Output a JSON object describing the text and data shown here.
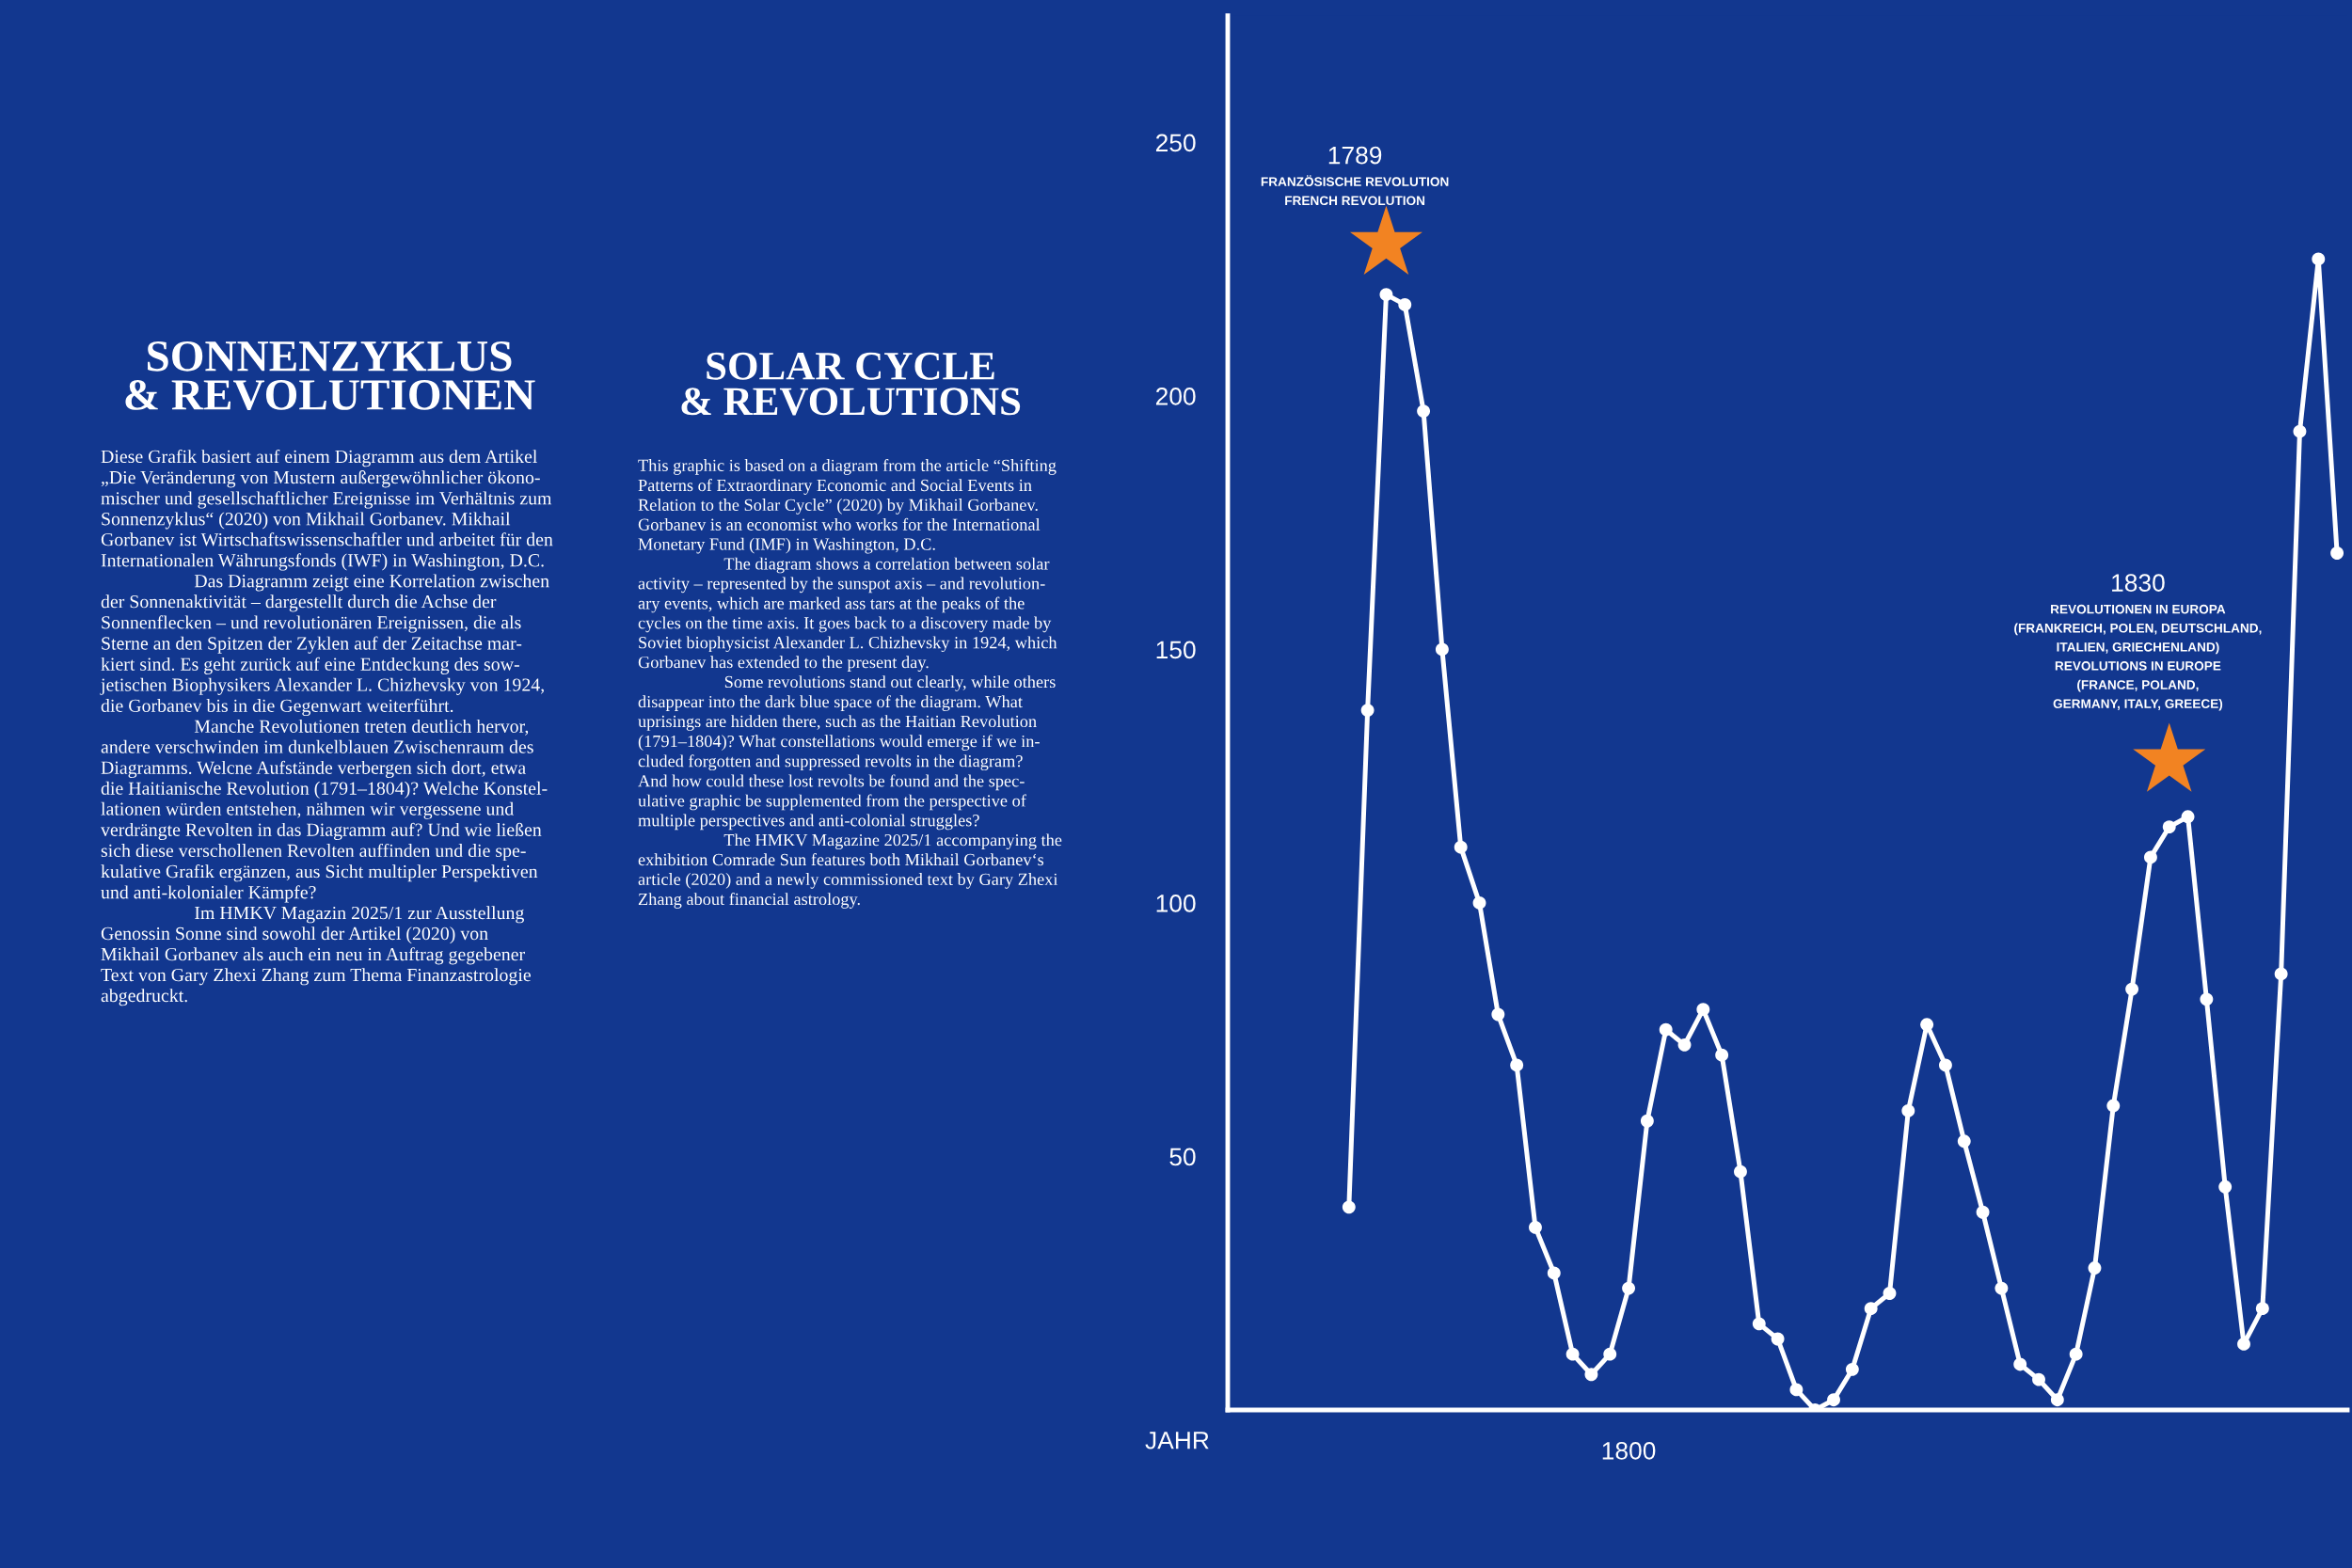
{
  "chart_data": {
    "type": "line",
    "title": "SONNENZYKLUS\n& REVOLUTIONEN",
    "subtitle": "SOLAR CYCLE\n& REVOLUTIONS",
    "xlabel": "JAHR",
    "categories": [
      null,
      null,
      null,
      null,
      null,
      null,
      null,
      null,
      null,
      null,
      null,
      null,
      null,
      null,
      null,
      "1800",
      null,
      null,
      null,
      null,
      null,
      null,
      null,
      null,
      null,
      null,
      null,
      null,
      null,
      null,
      null,
      null,
      null,
      null,
      null,
      null,
      null,
      null,
      null,
      null,
      null,
      null,
      null,
      null,
      null,
      null,
      null,
      null,
      null,
      null,
      null,
      null,
      null,
      null
    ],
    "series": [
      {
        "color": "#ffffff",
        "marker": "circle",
        "values": [
          40,
          138,
          220,
          218,
          197,
          150,
          111,
          100,
          78,
          68,
          36,
          27,
          11,
          7,
          11,
          24,
          57,
          75,
          72,
          79,
          70,
          47,
          17,
          14,
          4,
          0,
          2,
          8,
          20,
          23,
          59,
          76,
          68,
          53,
          39,
          24,
          9,
          6,
          2,
          11,
          28,
          60,
          83,
          109,
          115,
          117,
          81,
          44,
          13,
          20,
          86,
          193,
          227,
          169
        ]
      },
      {
        "type": "scatter",
        "name": "1789\nFRANZÖSISCHE REVOLUTION\nFRENCH REVOLUTION",
        "color": "#f28322",
        "marker": "star",
        "values": [
          null,
          null,
          230,
          null,
          null,
          null,
          null,
          null,
          null,
          null,
          null,
          null,
          null,
          null,
          null,
          null,
          null,
          null,
          null,
          null,
          null,
          null,
          null,
          null,
          null,
          null,
          null,
          null,
          null,
          null,
          null,
          null,
          null,
          null,
          null,
          null,
          null,
          null,
          null,
          null,
          null,
          null,
          null,
          null,
          null,
          null,
          null,
          null,
          null,
          null,
          null,
          null,
          null,
          null
        ]
      },
      {
        "type": "scatter",
        "name": "1830\nREVOLUTIONEN IN EUROPA\n(FRANKREICH, POLEN, DEUTSCHLAND,\nITALIEN, GRIECHENLAND)\nREVOLUTIONS IN EUROPE\n(FRANCE, POLAND,\nGERMANY, ITALY, GREECE)",
        "color": "#f28322",
        "marker": "star",
        "values": [
          null,
          null,
          null,
          null,
          null,
          null,
          null,
          null,
          null,
          null,
          null,
          null,
          null,
          null,
          null,
          null,
          null,
          null,
          null,
          null,
          null,
          null,
          null,
          null,
          null,
          null,
          null,
          null,
          null,
          null,
          null,
          null,
          null,
          null,
          null,
          null,
          null,
          null,
          null,
          null,
          null,
          null,
          null,
          null,
          128,
          null,
          null,
          null,
          null,
          null,
          null,
          null,
          null,
          null
        ]
      }
    ],
    "ylim": [
      0,
      275
    ],
    "yticks": [
      50,
      100,
      150,
      200,
      250
    ],
    "annotations": [
      "Diese Grafik basiert auf einem Diagramm aus dem Artikel\n„Die Veränderung von Mustern außergewöhnlicher ökono-\nmischer und gesellschaftlicher Ereignisse im Verhältnis zum\nSonnenzyklus“ (2020) von Mikhail Gorbanev. Mikhail\nGorbanev ist Wirtschaftswissenschaftler und arbeitet für den\nInternationalen Währungsfonds (IWF) in Washington, D.C.\n                    Das Diagramm zeigt eine Korrelation zwischen\nder Sonnenaktivität – dargestellt durch die Achse der\nSonnenflecken – und revolutionären Ereignissen, die als\nSterne an den Spitzen der Zyklen auf der Zeitachse mar-\nkiert sind. Es geht zurück auf eine Entdeckung des sow-\njetischen Biophysikers Alexander L. Chizhevsky von 1924,\ndie Gorbanev bis in die Gegenwart weiterführt.\n                    Manche Revolutionen treten deutlich hervor,\nandere verschwinden im dunkelblauen Zwischenraum des\nDiagramms. Welcne Aufstände verbergen sich dort, etwa\ndie Haitianische Revolution (1791–1804)? Welche Konstel-\nlationen würden entstehen, nähmen wir vergessene und\nverdrängte Revolten in das Diagramm auf? Und wie ließen\nsich diese verschollenen Revolten auffinden und die spe-\nkulative Grafik ergänzen, aus Sicht multipler Perspektiven\nund anti-kolonialer Kämpfe?\n                    Im HMKV Magazin 2025/1 zur Ausstellung\nGenossin Sonne sind sowohl der Artikel (2020) von\nMikhail Gorbanev als auch ein neu in Auftrag gegebener\nText von Gary Zhexi Zhang zum Thema Finanzastrologie\nabgedruckt.",
      "This graphic is based on a diagram from the article “Shifting\nPatterns of Extraordinary Economic and Social Events in\nRelation to the Solar Cycle” (2020) by Mikhail Gorbanev.\nGorbanev is an economist who works for the International\nMonetary Fund (IMF) in Washington, D.C.\n                    The diagram shows a correlation between solar\nactivity – represented by the sunspot axis – and revolution-\nary events, which are marked ass tars at the peaks of the\ncycles on the time axis. It goes back to a discovery made by\nSoviet biophysicist Alexander L. Chizhevsky in 1924, which\nGorbanev has extended to the present day.\n                    Some revolutions stand out clearly, while others\ndisappear into the dark blue space of the diagram. What\nuprisings are hidden there, such as the Haitian Revolution\n(1791–1804)? What constellations would emerge if we in-\ncluded forgotten and suppressed revolts in the diagram?\nAnd how could these lost revolts be found and the spec-\nulative graphic be supplemented from the perspective of\nmultiple perspectives and anti-colonial struggles?\n                    The HMKV Magazine 2025/1 accompanying the\nexhibition Comrade Sun features both Mikhail Gorbanev‘s\narticle (2020) and a newly commissioned text by Gary Zhexi\nZhang about financial astrology."
    ]
  }
}
